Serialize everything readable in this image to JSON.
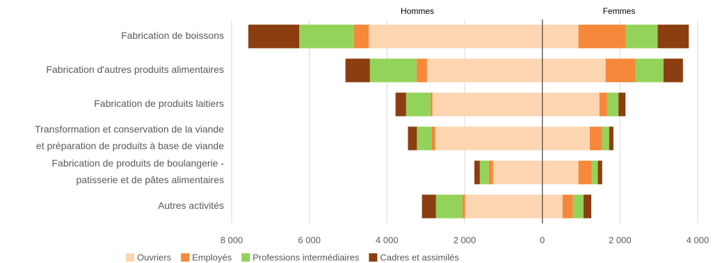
{
  "chart_data": {
    "type": "diverging-stacked-bar",
    "side_labels": [
      "Hommes",
      "Femmes"
    ],
    "categories": [
      [
        "Fabrication de boissons"
      ],
      [
        "Fabrication d'autres produits alimentaires"
      ],
      [
        "Fabrication de produits laitiers"
      ],
      [
        "Transformation et conservation de la viande",
        "et préparation de produits à base de viande"
      ],
      [
        "Fabrication de produits de boulangerie -",
        "patisserie et de pâtes alimentaires"
      ],
      [
        "Autres activités"
      ]
    ],
    "series": [
      {
        "name": "Ouvriers",
        "color": "#fdd5b1",
        "hommes": [
          -4470,
          -2970,
          -2830,
          -2760,
          -1270,
          -1990
        ],
        "femmes": [
          930,
          1630,
          1470,
          1220,
          930,
          520
        ]
      },
      {
        "name": "Employés",
        "color": "#f5883a",
        "hommes": [
          -380,
          -270,
          -50,
          -90,
          -110,
          -70
        ],
        "femmes": [
          1220,
          770,
          200,
          320,
          340,
          270
        ]
      },
      {
        "name": "Professions intermédiaires",
        "color": "#93d35a",
        "hommes": [
          -1410,
          -1200,
          -630,
          -380,
          -230,
          -680
        ],
        "femmes": [
          820,
          720,
          290,
          180,
          160,
          270
        ]
      },
      {
        "name": "Cadres et assimilés",
        "color": "#8b3e10",
        "hommes": [
          -1310,
          -630,
          -270,
          -230,
          -140,
          -360
        ],
        "femmes": [
          800,
          500,
          180,
          110,
          110,
          200
        ]
      }
    ],
    "xlim": [
      -8000,
      4000
    ],
    "xticks": [
      {
        "value": -8000,
        "label": "8 000"
      },
      {
        "value": -6000,
        "label": "6 000"
      },
      {
        "value": -4000,
        "label": "4 000"
      },
      {
        "value": -2000,
        "label": "2 000"
      },
      0,
      {
        "value": 2000,
        "label": "2 000"
      },
      {
        "value": 4000,
        "label": "4 000"
      }
    ],
    "grid": true,
    "legend": "bottom"
  }
}
